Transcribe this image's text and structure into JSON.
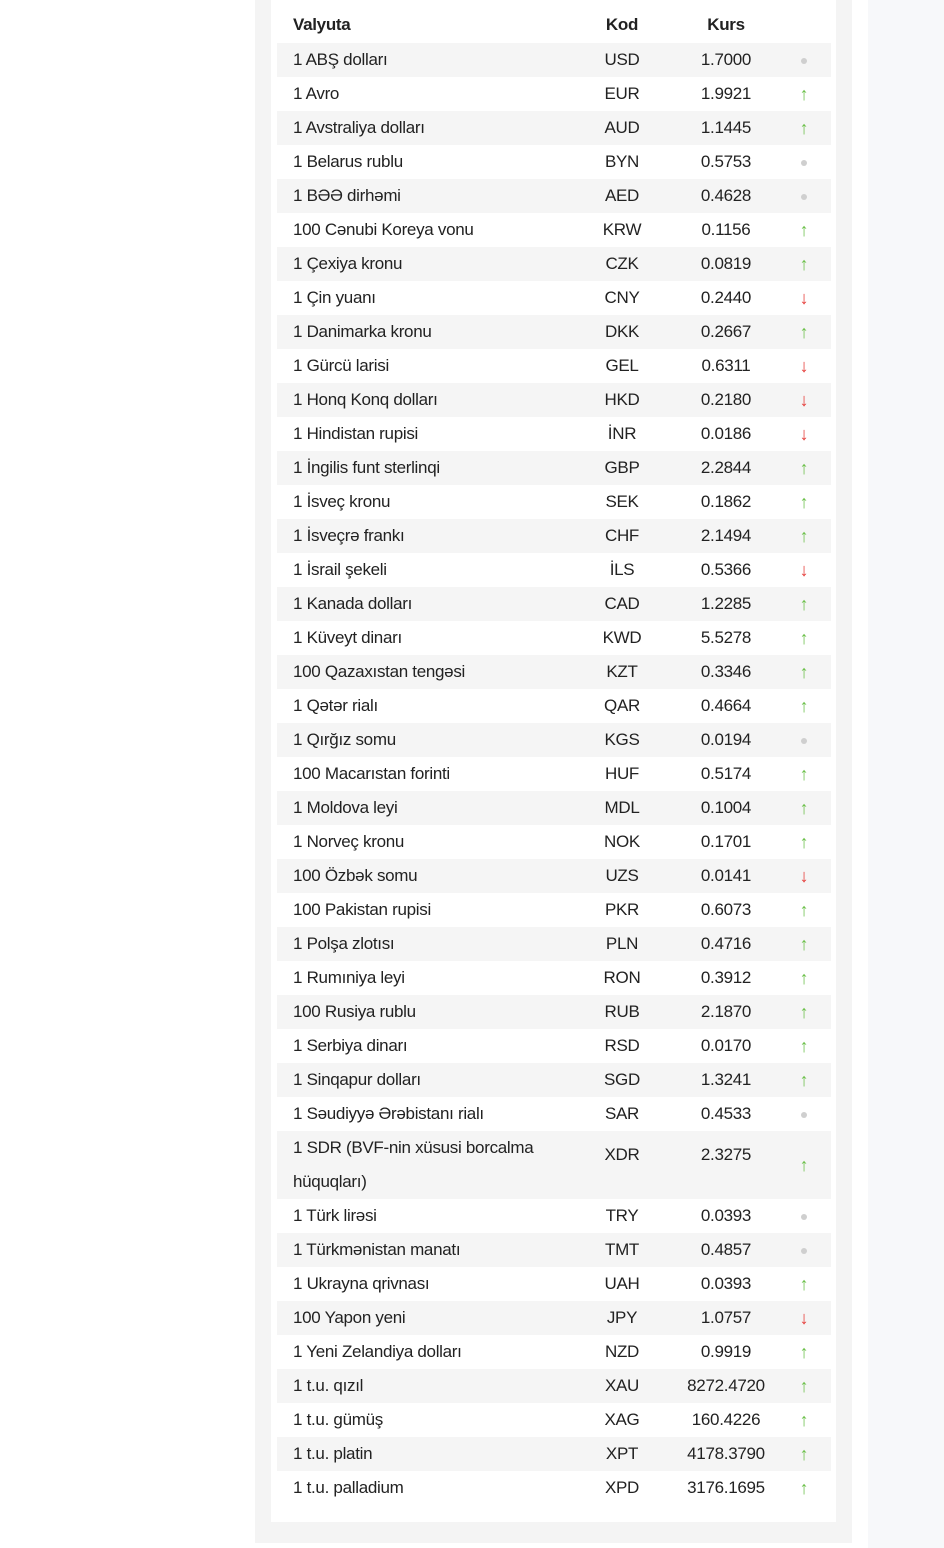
{
  "header": {
    "name": "Valyuta",
    "code": "Kod",
    "rate": "Kurs"
  },
  "colors": {
    "up": "#6cc04a",
    "down": "#e53935",
    "same": "#cfcfcf"
  },
  "rows": [
    {
      "name": "1 ABŞ dolları",
      "code": "USD",
      "rate": "1.7000",
      "trend": "same"
    },
    {
      "name": "1 Avro",
      "code": "EUR",
      "rate": "1.9921",
      "trend": "up"
    },
    {
      "name": "1 Avstraliya dolları",
      "code": "AUD",
      "rate": "1.1445",
      "trend": "up"
    },
    {
      "name": "1 Belarus rublu",
      "code": "BYN",
      "rate": "0.5753",
      "trend": "same"
    },
    {
      "name": "1 BƏƏ dirhəmi",
      "code": "AED",
      "rate": "0.4628",
      "trend": "same"
    },
    {
      "name": "100 Cənubi Koreya vonu",
      "code": "KRW",
      "rate": "0.1156",
      "trend": "up"
    },
    {
      "name": "1 Çexiya kronu",
      "code": "CZK",
      "rate": "0.0819",
      "trend": "up"
    },
    {
      "name": "1 Çin yuanı",
      "code": "CNY",
      "rate": "0.2440",
      "trend": "down"
    },
    {
      "name": "1 Danimarka kronu",
      "code": "DKK",
      "rate": "0.2667",
      "trend": "up"
    },
    {
      "name": "1 Gürcü larisi",
      "code": "GEL",
      "rate": "0.6311",
      "trend": "down"
    },
    {
      "name": "1 Honq Konq dolları",
      "code": "HKD",
      "rate": "0.2180",
      "trend": "down"
    },
    {
      "name": "1 Hindistan rupisi",
      "code": "İNR",
      "rate": "0.0186",
      "trend": "down"
    },
    {
      "name": "1 İngilis funt sterlinqi",
      "code": "GBP",
      "rate": "2.2844",
      "trend": "up"
    },
    {
      "name": "1 İsveç kronu",
      "code": "SEK",
      "rate": "0.1862",
      "trend": "up"
    },
    {
      "name": "1 İsveçrə frankı",
      "code": "CHF",
      "rate": "2.1494",
      "trend": "up"
    },
    {
      "name": "1 İsrail şekeli",
      "code": "İLS",
      "rate": "0.5366",
      "trend": "down"
    },
    {
      "name": "1 Kanada dolları",
      "code": "CAD",
      "rate": "1.2285",
      "trend": "up"
    },
    {
      "name": "1 Küveyt dinarı",
      "code": "KWD",
      "rate": "5.5278",
      "trend": "up"
    },
    {
      "name": "100 Qazaxıstan tengəsi",
      "code": "KZT",
      "rate": "0.3346",
      "trend": "up"
    },
    {
      "name": "1 Qətər rialı",
      "code": "QAR",
      "rate": "0.4664",
      "trend": "up"
    },
    {
      "name": "1 Qırğız somu",
      "code": "KGS",
      "rate": "0.0194",
      "trend": "same"
    },
    {
      "name": "100 Macarıstan forinti",
      "code": "HUF",
      "rate": "0.5174",
      "trend": "up"
    },
    {
      "name": "1 Moldova leyi",
      "code": "MDL",
      "rate": "0.1004",
      "trend": "up"
    },
    {
      "name": "1 Norveç kronu",
      "code": "NOK",
      "rate": "0.1701",
      "trend": "up"
    },
    {
      "name": "100 Özbək somu",
      "code": "UZS",
      "rate": "0.0141",
      "trend": "down"
    },
    {
      "name": "100 Pakistan rupisi",
      "code": "PKR",
      "rate": "0.6073",
      "trend": "up"
    },
    {
      "name": "1 Polşa zlotısı",
      "code": "PLN",
      "rate": "0.4716",
      "trend": "up"
    },
    {
      "name": "1 Rumıniya leyi",
      "code": "RON",
      "rate": "0.3912",
      "trend": "up"
    },
    {
      "name": "100 Rusiya rublu",
      "code": "RUB",
      "rate": "2.1870",
      "trend": "up"
    },
    {
      "name": "1 Serbiya dinarı",
      "code": "RSD",
      "rate": "0.0170",
      "trend": "up"
    },
    {
      "name": "1 Sinqapur dolları",
      "code": "SGD",
      "rate": "1.3241",
      "trend": "up"
    },
    {
      "name": "1 Səudiyyə Ərəbistanı rialı",
      "code": "SAR",
      "rate": "0.4533",
      "trend": "same"
    },
    {
      "name": "1 SDR (BVF-nin xüsusi borcalma hüquqları)",
      "code": "XDR",
      "rate": "2.3275",
      "trend": "up",
      "tall": true
    },
    {
      "name": "1 Türk lirəsi",
      "code": "TRY",
      "rate": "0.0393",
      "trend": "same"
    },
    {
      "name": "1 Türkmənistan manatı",
      "code": "TMT",
      "rate": "0.4857",
      "trend": "same"
    },
    {
      "name": "1 Ukrayna qrivnası",
      "code": "UAH",
      "rate": "0.0393",
      "trend": "up"
    },
    {
      "name": "100 Yapon yeni",
      "code": "JPY",
      "rate": "1.0757",
      "trend": "down"
    },
    {
      "name": "1 Yeni Zelandiya dolları",
      "code": "NZD",
      "rate": "0.9919",
      "trend": "up"
    },
    {
      "name": "1 t.u. qızıl",
      "code": "XAU",
      "rate": "8272.4720",
      "trend": "up"
    },
    {
      "name": "1 t.u. gümüş",
      "code": "XAG",
      "rate": "160.4226",
      "trend": "up"
    },
    {
      "name": "1 t.u. platin",
      "code": "XPT",
      "rate": "4178.3790",
      "trend": "up"
    },
    {
      "name": "1 t.u. palladium",
      "code": "XPD",
      "rate": "3176.1695",
      "trend": "up"
    }
  ]
}
